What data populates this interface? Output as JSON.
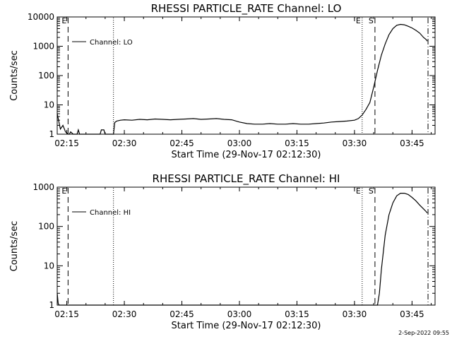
{
  "timestamp": "2-Sep-2022 09:55",
  "chart_data": [
    {
      "type": "line",
      "title": "RHESSI PARTICLE_RATE Channel: LO",
      "xlabel": "Start Time (29-Nov-17 02:12:30)",
      "ylabel": "Counts/sec",
      "xscale": "time",
      "yscale": "log",
      "xlim": [
        "02:12:30",
        "03:51:00"
      ],
      "ylim": [
        1,
        10000
      ],
      "x_ticks": [
        "02:15",
        "02:30",
        "02:45",
        "03:00",
        "03:15",
        "03:30",
        "03:45"
      ],
      "y_ticks": [
        "1",
        "10",
        "100",
        "1000",
        "10000"
      ],
      "legend": {
        "label": "Channel: LO",
        "position": "top-left"
      },
      "markers": [
        {
          "label": "E",
          "time": "02:15:20",
          "style": "dashed"
        },
        {
          "label": "",
          "time": "02:27:10",
          "style": "dotted"
        },
        {
          "label": "E",
          "time": "03:32:00",
          "style": "dotted"
        },
        {
          "label": "S",
          "time": "03:35:20",
          "style": "dashed"
        },
        {
          "label": "",
          "time": "03:49:10",
          "style": "dashdot"
        }
      ],
      "series": [
        {
          "x": [
            "02:12:30",
            "02:13:20",
            "02:14:00",
            "02:14:40",
            "02:15:20",
            "02:15:40",
            "02:16:00",
            "02:16:40",
            "02:17:00",
            "02:17:40",
            "02:18:00",
            "02:18:20",
            "02:19:00",
            "02:20:00",
            "02:21:00",
            "02:22:00",
            "02:23:00",
            "02:23:40",
            "02:24:00",
            "02:24:40",
            "02:25:00",
            "02:26:00",
            "02:26:40",
            "02:27:10",
            "02:27:30",
            "02:28:00",
            "02:29:00",
            "02:30:00",
            "02:32:00",
            "02:34:00",
            "02:36:00",
            "02:38:00",
            "02:40:00",
            "02:42:00",
            "02:44:00",
            "02:46:00",
            "02:48:00",
            "02:50:00",
            "02:52:00",
            "02:54:00",
            "02:56:00",
            "02:58:00",
            "03:00:00",
            "03:02:00",
            "03:04:00",
            "03:06:00",
            "03:08:00",
            "03:10:00",
            "03:12:00",
            "03:14:00",
            "03:16:00",
            "03:18:00",
            "03:20:00",
            "03:22:00",
            "03:24:00",
            "03:26:00",
            "03:28:00",
            "03:30:00",
            "03:31:00",
            "03:32:00",
            "03:33:00",
            "03:34:00",
            "03:35:00",
            "03:36:00",
            "03:37:00",
            "03:38:00",
            "03:39:00",
            "03:40:00",
            "03:41:00",
            "03:42:00",
            "03:43:00",
            "03:44:00",
            "03:45:00",
            "03:46:00",
            "03:47:00",
            "03:48:00",
            "03:48:40",
            "03:49:00"
          ],
          "y": [
            5,
            1.5,
            2,
            1.2,
            1,
            1,
            1.2,
            1,
            1,
            1,
            1.4,
            1,
            1,
            1,
            1,
            1,
            1,
            1,
            1.4,
            1.4,
            1,
            1,
            1,
            1,
            2.5,
            2.8,
            3,
            3.1,
            3,
            3.2,
            3.1,
            3.3,
            3.2,
            3.1,
            3.2,
            3.3,
            3.4,
            3.2,
            3.3,
            3.4,
            3.2,
            3.1,
            2.6,
            2.3,
            2.2,
            2.2,
            2.3,
            2.2,
            2.2,
            2.3,
            2.2,
            2.2,
            2.3,
            2.4,
            2.6,
            2.7,
            2.8,
            3.0,
            3.4,
            4.5,
            7,
            12,
            40,
            150,
            500,
            1200,
            2500,
            4000,
            5200,
            5600,
            5400,
            4800,
            4200,
            3500,
            2800,
            2000,
            1700,
            1500
          ]
        }
      ]
    },
    {
      "type": "line",
      "title": "RHESSI PARTICLE_RATE Channel: HI",
      "xlabel": "Start Time (29-Nov-17 02:12:30)",
      "ylabel": "Counts/sec",
      "xscale": "time",
      "yscale": "log",
      "xlim": [
        "02:12:30",
        "03:51:00"
      ],
      "ylim": [
        1,
        1000
      ],
      "x_ticks": [
        "02:15",
        "02:30",
        "02:45",
        "03:00",
        "03:15",
        "03:30",
        "03:45"
      ],
      "y_ticks": [
        "1",
        "10",
        "100",
        "1000"
      ],
      "legend": {
        "label": "Channel: HI",
        "position": "top-left"
      },
      "markers": [
        {
          "label": "E",
          "time": "02:15:20",
          "style": "dashed"
        },
        {
          "label": "",
          "time": "02:27:10",
          "style": "dotted"
        },
        {
          "label": "E",
          "time": "03:32:00",
          "style": "dotted"
        },
        {
          "label": "S",
          "time": "03:35:20",
          "style": "dashed"
        },
        {
          "label": "",
          "time": "03:49:10",
          "style": "dashdot"
        }
      ],
      "series": [
        {
          "x": [
            "02:12:30",
            "02:12:45",
            "02:13:00",
            "03:36:00",
            "03:36:30",
            "03:37:00",
            "03:38:00",
            "03:39:00",
            "03:40:00",
            "03:41:00",
            "03:42:00",
            "03:43:00",
            "03:44:00",
            "03:45:00",
            "03:46:00",
            "03:47:00",
            "03:48:00",
            "03:48:40",
            "03:49:00"
          ],
          "y": [
            2,
            1.1,
            1,
            1,
            2,
            8,
            60,
            200,
            400,
            600,
            700,
            700,
            650,
            550,
            450,
            350,
            280,
            240,
            220
          ]
        }
      ]
    }
  ]
}
